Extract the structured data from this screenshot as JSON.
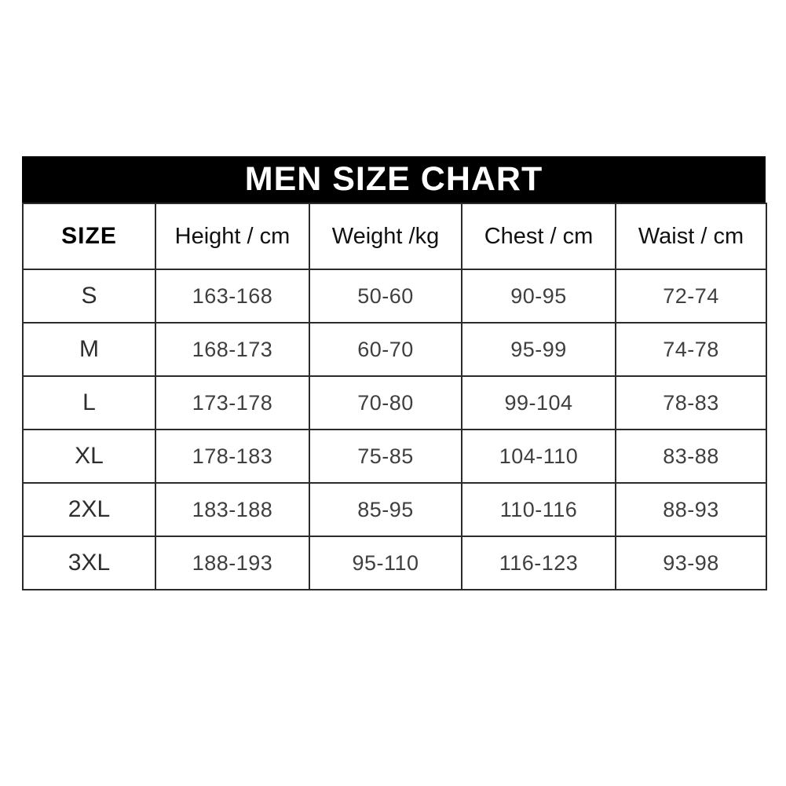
{
  "title_band": {
    "label": "MEN SIZE CHART",
    "background": "#000000",
    "text_color": "#ffffff"
  },
  "chart_data": {
    "type": "table",
    "title": "MEN SIZE CHART",
    "columns": [
      "SIZE",
      "Height / cm",
      "Weight /kg",
      "Chest / cm",
      "Waist / cm"
    ],
    "rows": [
      [
        "S",
        "163-168",
        "50-60",
        "90-95",
        "72-74"
      ],
      [
        "M",
        "168-173",
        "60-70",
        "95-99",
        "74-78"
      ],
      [
        "L",
        "173-178",
        "70-80",
        "99-104",
        "78-83"
      ],
      [
        "XL",
        "178-183",
        "75-85",
        "104-110",
        "83-88"
      ],
      [
        "2XL",
        "183-188",
        "85-95",
        "110-116",
        "88-93"
      ],
      [
        "3XL",
        "188-193",
        "95-110",
        "116-123",
        "93-98"
      ]
    ],
    "layout": {
      "grid": true,
      "grid_color": "#2b2b2b",
      "header_text_color": "#111111",
      "cell_text_color": "#3f3f3f"
    }
  }
}
